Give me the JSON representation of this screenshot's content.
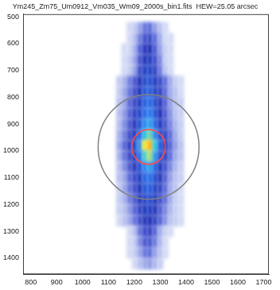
{
  "chart_data": {
    "type": "heatmap",
    "title": "Ym245_Zm75_Um0912_Vm035_Wm09_2000s_bin1.fits  HEW=25.05 arcsec",
    "xlim": [
      770,
      1720
    ],
    "xticks": [
      800,
      900,
      1000,
      1100,
      1200,
      1300,
      1400,
      1500,
      1600,
      1700
    ],
    "ylim": [
      1460,
      490
    ],
    "yticks": [
      500,
      600,
      700,
      800,
      900,
      1000,
      1100,
      1200,
      1300,
      1400
    ],
    "grid": false,
    "cells": {
      "x": [
        1140,
        1160,
        1180,
        1200,
        1220,
        1240,
        1260,
        1280,
        1300,
        1320,
        1340,
        1360,
        1380
      ],
      "y": [
        540,
        580,
        620,
        660,
        700,
        740,
        780,
        820,
        860,
        900,
        940,
        980,
        1020,
        1060,
        1100,
        1140,
        1180,
        1220,
        1260,
        1300,
        1340,
        1380,
        1420
      ],
      "values": [
        [
          0,
          0,
          1,
          2,
          5,
          9,
          10,
          6,
          3,
          1,
          0,
          0,
          0
        ],
        [
          0,
          0,
          1,
          3,
          8,
          16,
          18,
          11,
          5,
          1,
          1,
          0,
          0
        ],
        [
          0,
          1,
          1,
          4,
          11,
          23,
          25,
          15,
          6,
          2,
          1,
          0,
          0
        ],
        [
          0,
          1,
          2,
          5,
          14,
          27,
          30,
          18,
          8,
          2,
          1,
          0,
          0
        ],
        [
          0,
          1,
          2,
          5,
          16,
          32,
          35,
          21,
          9,
          3,
          1,
          0,
          0
        ],
        [
          2,
          4,
          8,
          14,
          24,
          36,
          40,
          30,
          18,
          10,
          5,
          2,
          1
        ],
        [
          2,
          5,
          9,
          16,
          27,
          41,
          45,
          34,
          20,
          11,
          5,
          3,
          1
        ],
        [
          3,
          5,
          10,
          18,
          30,
          45,
          50,
          38,
          23,
          13,
          6,
          3,
          2
        ],
        [
          3,
          6,
          11,
          20,
          34,
          50,
          56,
          42,
          25,
          14,
          7,
          3,
          2
        ],
        [
          3,
          7,
          13,
          23,
          39,
          59,
          65,
          49,
          29,
          16,
          8,
          4,
          2
        ],
        [
          4,
          8,
          16,
          28,
          48,
          72,
          80,
          60,
          36,
          20,
          10,
          5,
          2
        ],
        [
          5,
          10,
          20,
          35,
          60,
          90,
          100,
          75,
          45,
          25,
          12,
          6,
          3
        ],
        [
          4,
          9,
          17,
          30,
          51,
          77,
          85,
          64,
          38,
          21,
          10,
          5,
          3
        ],
        [
          3,
          7,
          13,
          23,
          39,
          59,
          65,
          49,
          29,
          16,
          8,
          4,
          2
        ],
        [
          3,
          5,
          10,
          18,
          31,
          47,
          52,
          39,
          23,
          13,
          6,
          3,
          2
        ],
        [
          2,
          5,
          9,
          16,
          27,
          41,
          45,
          34,
          20,
          11,
          5,
          3,
          1
        ],
        [
          2,
          4,
          8,
          13,
          23,
          34,
          38,
          29,
          17,
          10,
          5,
          2,
          1
        ],
        [
          2,
          3,
          6,
          11,
          19,
          29,
          32,
          24,
          14,
          8,
          4,
          2,
          1
        ],
        [
          1,
          3,
          5,
          9,
          16,
          23,
          26,
          20,
          12,
          7,
          3,
          2,
          1
        ],
        [
          0,
          0,
          1,
          3,
          9,
          18,
          20,
          12,
          5,
          2,
          1,
          0,
          0
        ],
        [
          0,
          0,
          1,
          2,
          7,
          14,
          15,
          9,
          4,
          1,
          0,
          0,
          0
        ],
        [
          0,
          0,
          1,
          2,
          5,
          9,
          10,
          6,
          3,
          1,
          0,
          0,
          0
        ],
        [
          0,
          0,
          0,
          1,
          3,
          5,
          6,
          4,
          2,
          0,
          0,
          0,
          0
        ]
      ]
    },
    "circles": [
      {
        "x": 1255,
        "y": 985,
        "r": 195,
        "color": "#808080"
      },
      {
        "x": 1255,
        "y": 985,
        "r": 65,
        "color": "#ff4a4a"
      }
    ]
  }
}
